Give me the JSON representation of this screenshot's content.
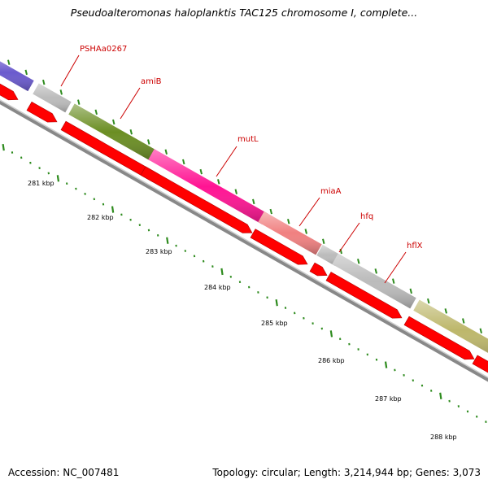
{
  "title": "Pseudoalteromonas haloplanktis TAC125 chromosome I, complete...",
  "footer": {
    "accession": "Accession: NC_007481",
    "summary": "Topology: circular; Length: 3,214,944 bp; Genes: 3,073"
  },
  "colors": {
    "backbone": "#888888",
    "cds": "#ff0000",
    "tick": "#2e8b1e",
    "gene_label": "#cc0000",
    "genes": {
      "left_offscreen": "#6a5acd",
      "PSHAa0267": "#bbbbbb",
      "amiB": "#6b8e23",
      "mutL": "#ff1493",
      "miaA": "#f08080",
      "hfq": "#bbbbbb",
      "hflX": "#bbbbbb",
      "right_offscreen": "#bdb76b"
    }
  },
  "gene_labels": [
    "PSHAa0267",
    "amiB",
    "mutL",
    "miaA",
    "hfq",
    "hflX"
  ],
  "kbp_labels": [
    "281 kbp",
    "282 kbp",
    "283 kbp",
    "284 kbp",
    "285 kbp",
    "286 kbp",
    "287 kbp",
    "288 kbp"
  ]
}
